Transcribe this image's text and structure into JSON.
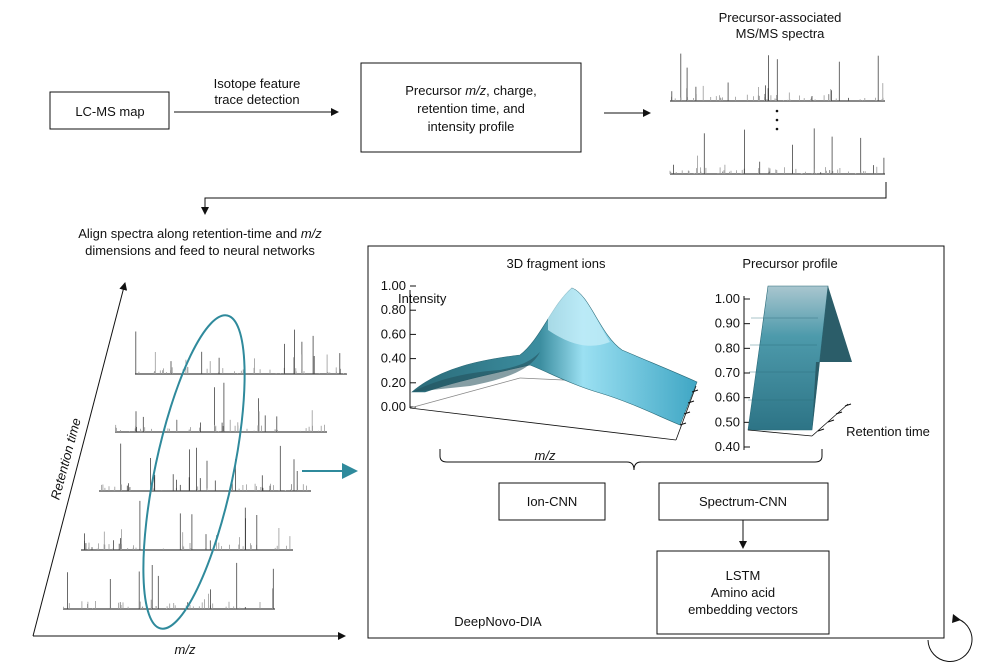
{
  "top_row": {
    "lcms_box": "LC-MS map",
    "arrow1_label_line1": "Isotope feature",
    "arrow1_label_line2": "trace detection",
    "precursor_box_line1_pre": "Precursor ",
    "precursor_box_line1_italic": "m/z",
    "precursor_box_line1_post": ", charge,",
    "precursor_box_line2": "retention time, and",
    "precursor_box_line3": "intensity profile",
    "spectra_title_line1": "Precursor-associated",
    "spectra_title_line2": "MS/MS spectra"
  },
  "align_text": {
    "line1_pre": "Align spectra along retention-time and ",
    "line1_italic": "m/z",
    "line2": "dimensions and feed to neural networks"
  },
  "left_axes": {
    "y_label": "Retention time",
    "x_label": "m/z"
  },
  "deepnovo_panel": {
    "fragment_title": "3D fragment ions",
    "fragment_z_label": "Intensity",
    "fragment_x_label": "m/z",
    "fragment_ticks": [
      "1.00",
      "0.80",
      "0.60",
      "0.40",
      "0.20",
      "0.00"
    ],
    "precursor_title": "Precursor profile",
    "precursor_ticks": [
      "1.00",
      "0.90",
      "0.80",
      "0.70",
      "0.60",
      "0.50",
      "0.40"
    ],
    "precursor_axis_label": "Retention time",
    "ion_cnn": "Ion-CNN",
    "spectrum_cnn": "Spectrum-CNN",
    "lstm_line1": "LSTM",
    "lstm_line2": "Amino acid",
    "lstm_line3": "embedding vectors",
    "panel_label": "DeepNovo-DIA"
  },
  "colors": {
    "teal": "#2f8a9c",
    "surface_light": "#7fd3ea",
    "surface_dark": "#2a6a78",
    "line": "#111111"
  }
}
